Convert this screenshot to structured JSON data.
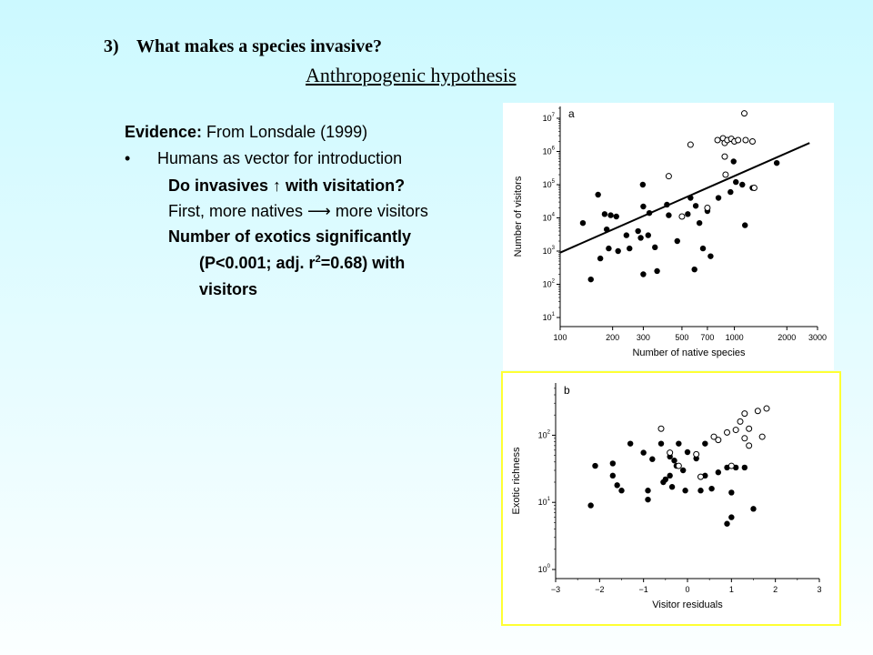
{
  "slide": {
    "question_number": "3)",
    "question_text": "What makes a species invasive?",
    "subtitle": "Anthropogenic hypothesis",
    "evidence_label": "Evidence:",
    "evidence_source": " From Lonsdale (1999)",
    "bullet_char": "•",
    "bullet_text": "Humans as vector for introduction",
    "line_invasives": "Do invasives ↑ with visitation?",
    "line_natives": "First, more natives ⟶ more visitors",
    "line_exotics_1": "Number of exotics significantly",
    "line_exotics_2a": "(P<0.001; adj. r",
    "line_exotics_2sup": "2",
    "line_exotics_2b": "=0.68) with",
    "line_exotics_3": "visitors",
    "highlight_color": "#ffff33"
  },
  "chart_data": [
    {
      "panel_label": "a",
      "type": "scatter",
      "xlabel": "Number of native species",
      "ylabel": "Number of visitors",
      "xscale": "log",
      "yscale": "log",
      "xlim": [
        100,
        3000
      ],
      "ylim": [
        10,
        10000000
      ],
      "x_ticks": [
        100,
        200,
        300,
        500,
        700,
        1000,
        2000,
        3000
      ],
      "x_tick_labels": [
        "100",
        "200",
        "300",
        "500",
        "700",
        "1000",
        "2000",
        "3000"
      ],
      "y_ticks": [
        10,
        100,
        1000,
        10000,
        100000,
        1000000,
        10000000
      ],
      "y_tick_labels": [
        "10",
        "10",
        "10",
        "10",
        "10",
        "10",
        "10"
      ],
      "y_tick_exponents": [
        "1",
        "2",
        "3",
        "4",
        "5",
        "6",
        "7"
      ],
      "fit_line": {
        "x": [
          100,
          2700
        ],
        "y": [
          900,
          1800000
        ]
      },
      "series": [
        {
          "marker": "filled",
          "points": [
            [
              135,
              7000
            ],
            [
              150,
              140
            ],
            [
              165,
              50000
            ],
            [
              170,
              600
            ],
            [
              180,
              13000
            ],
            [
              185,
              4500
            ],
            [
              190,
              1200
            ],
            [
              195,
              12000
            ],
            [
              210,
              11000
            ],
            [
              215,
              1000
            ],
            [
              240,
              3000
            ],
            [
              250,
              1200
            ],
            [
              280,
              4000
            ],
            [
              290,
              2500
            ],
            [
              298,
              100000
            ],
            [
              300,
              22000
            ],
            [
              300,
              200
            ],
            [
              320,
              3000
            ],
            [
              325,
              14000
            ],
            [
              350,
              1300
            ],
            [
              360,
              250
            ],
            [
              410,
              25000
            ],
            [
              420,
              12000
            ],
            [
              470,
              2000
            ],
            [
              540,
              13000
            ],
            [
              560,
              40000
            ],
            [
              590,
              280
            ],
            [
              600,
              23000
            ],
            [
              630,
              7000
            ],
            [
              660,
              1200
            ],
            [
              700,
              16000
            ],
            [
              730,
              700
            ],
            [
              810,
              40000
            ],
            [
              950,
              60000
            ],
            [
              990,
              500000
            ],
            [
              1020,
              120000
            ],
            [
              1110,
              100000
            ],
            [
              1150,
              6000
            ],
            [
              1270,
              80000
            ],
            [
              1750,
              450000
            ]
          ]
        },
        {
          "marker": "open",
          "points": [
            [
              420,
              180000
            ],
            [
              500,
              11000
            ],
            [
              560,
              1600000
            ],
            [
              700,
              20000
            ],
            [
              800,
              2200000
            ],
            [
              860,
              2500000
            ],
            [
              880,
              1800000
            ],
            [
              880,
              700000
            ],
            [
              890,
              200000
            ],
            [
              910,
              2200000
            ],
            [
              960,
              2400000
            ],
            [
              1000,
              2000000
            ],
            [
              1050,
              2200000
            ],
            [
              1140,
              14000000
            ],
            [
              1160,
              2200000
            ],
            [
              1270,
              2000000
            ],
            [
              1300,
              80000
            ]
          ]
        }
      ]
    },
    {
      "panel_label": "b",
      "type": "scatter",
      "xlabel": "Visitor residuals",
      "ylabel": "Exotic richness",
      "yscale": "log",
      "xlim": [
        -3,
        3
      ],
      "ylim": [
        1,
        600
      ],
      "x_ticks": [
        -3,
        -2,
        -1,
        0,
        1,
        2,
        3
      ],
      "x_tick_labels": [
        "−3",
        "−2",
        "−1",
        "0",
        "1",
        "2",
        "3"
      ],
      "y_ticks": [
        1,
        10,
        100
      ],
      "y_tick_labels": [
        "10",
        "10",
        "10"
      ],
      "y_tick_exponents": [
        "0",
        "1",
        "2"
      ],
      "series": [
        {
          "marker": "filled",
          "points": [
            [
              -2.2,
              9
            ],
            [
              -2.1,
              35
            ],
            [
              -1.7,
              25
            ],
            [
              -1.7,
              38
            ],
            [
              -1.6,
              18
            ],
            [
              -1.5,
              15
            ],
            [
              -1.3,
              75
            ],
            [
              -1.0,
              55
            ],
            [
              -0.9,
              11
            ],
            [
              -0.9,
              15
            ],
            [
              -0.8,
              44
            ],
            [
              -0.6,
              75
            ],
            [
              -0.55,
              20
            ],
            [
              -0.5,
              22
            ],
            [
              -0.4,
              48
            ],
            [
              -0.4,
              25
            ],
            [
              -0.35,
              17
            ],
            [
              -0.3,
              42
            ],
            [
              -0.25,
              35
            ],
            [
              -0.2,
              75
            ],
            [
              -0.1,
              30
            ],
            [
              -0.05,
              15
            ],
            [
              0,
              56
            ],
            [
              0.2,
              45
            ],
            [
              0.3,
              15
            ],
            [
              0.4,
              75
            ],
            [
              0.4,
              25
            ],
            [
              0.55,
              16
            ],
            [
              0.7,
              28
            ],
            [
              0.9,
              33
            ],
            [
              1.0,
              14
            ],
            [
              0.9,
              4.8
            ],
            [
              1.0,
              6
            ],
            [
              1.1,
              33
            ],
            [
              1.3,
              33
            ],
            [
              1.5,
              8
            ]
          ]
        },
        {
          "marker": "open",
          "points": [
            [
              -0.6,
              125
            ],
            [
              -0.4,
              55
            ],
            [
              -0.2,
              35
            ],
            [
              0.2,
              52
            ],
            [
              0.3,
              24
            ],
            [
              0.6,
              95
            ],
            [
              0.7,
              85
            ],
            [
              0.9,
              110
            ],
            [
              1.0,
              35
            ],
            [
              1.1,
              120
            ],
            [
              1.2,
              160
            ],
            [
              1.3,
              90
            ],
            [
              1.3,
              210
            ],
            [
              1.4,
              70
            ],
            [
              1.6,
              230
            ],
            [
              1.7,
              95
            ],
            [
              1.8,
              250
            ],
            [
              1.4,
              125
            ]
          ]
        }
      ]
    }
  ]
}
